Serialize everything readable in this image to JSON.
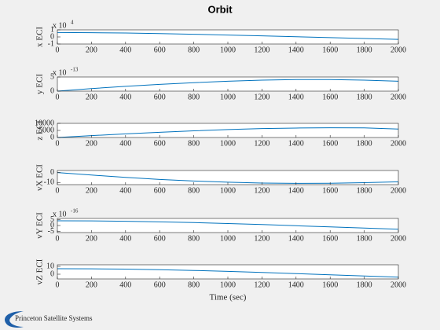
{
  "title": "Orbit",
  "footer": {
    "logo_text": "Princeton Satellite Systems"
  },
  "chart_data": [
    {
      "type": "line",
      "ylabel": "x ECI",
      "y_multiplier": {
        "base": "x 10",
        "power": "4"
      },
      "x": [
        0,
        200,
        400,
        600,
        800,
        1000,
        1200,
        1400,
        1600,
        1800,
        2000
      ],
      "series": [
        {
          "color": "#0072bd",
          "values": [
            0.62,
            0.6,
            0.55,
            0.47,
            0.38,
            0.27,
            0.15,
            0.03,
            -0.1,
            -0.22,
            -0.35
          ]
        }
      ],
      "xlim": [
        0,
        2000
      ],
      "xticks": [
        0,
        200,
        400,
        600,
        800,
        1000,
        1200,
        1400,
        1600,
        1800,
        2000
      ],
      "ylim": [
        -1,
        1
      ],
      "yticks": [
        -1,
        0,
        1
      ]
    },
    {
      "type": "line",
      "ylabel": "y ECI",
      "y_multiplier": {
        "base": "x 10",
        "power": "-13"
      },
      "x": [
        0,
        200,
        400,
        600,
        800,
        1000,
        1200,
        1400,
        1600,
        1800,
        2000
      ],
      "series": [
        {
          "color": "#0072bd",
          "values": [
            0,
            0.9,
            1.7,
            2.4,
            3.0,
            3.5,
            3.9,
            4.1,
            4.1,
            3.9,
            3.5
          ]
        }
      ],
      "xlim": [
        0,
        2000
      ],
      "xticks": [
        0,
        200,
        400,
        600,
        800,
        1000,
        1200,
        1400,
        1600,
        1800,
        2000
      ],
      "ylim": [
        0,
        5
      ],
      "yticks": [
        0,
        5
      ]
    },
    {
      "type": "line",
      "ylabel": "z ECI",
      "x": [
        0,
        200,
        400,
        600,
        800,
        1000,
        1200,
        1400,
        1600,
        1800,
        2000
      ],
      "series": [
        {
          "color": "#0072bd",
          "values": [
            0,
            1300,
            2600,
            3700,
            4700,
            5600,
            6300,
            6700,
            6900,
            6800,
            6000
          ]
        }
      ],
      "xlim": [
        0,
        2000
      ],
      "xticks": [
        0,
        200,
        400,
        600,
        800,
        1000,
        1200,
        1400,
        1600,
        1800,
        2000
      ],
      "ylim": [
        0,
        10000
      ],
      "yticks": [
        0,
        5000,
        10000
      ]
    },
    {
      "type": "line",
      "ylabel": "vX ECI",
      "x": [
        0,
        200,
        400,
        600,
        800,
        1000,
        1200,
        1400,
        1600,
        1800,
        2000
      ],
      "series": [
        {
          "color": "#0072bd",
          "values": [
            0,
            -2.5,
            -4.8,
            -6.8,
            -8.4,
            -9.6,
            -10.4,
            -10.7,
            -10.6,
            -10.1,
            -9.2
          ]
        }
      ],
      "xlim": [
        0,
        2000
      ],
      "xticks": [
        0,
        200,
        400,
        600,
        800,
        1000,
        1200,
        1400,
        1600,
        1800,
        2000
      ],
      "ylim": [
        -12,
        2
      ],
      "yticks": [
        -10,
        0
      ]
    },
    {
      "type": "line",
      "ylabel": "vY ECI",
      "y_multiplier": {
        "base": "x 10",
        "power": "-16"
      },
      "x": [
        0,
        200,
        400,
        600,
        800,
        1000,
        1200,
        1400,
        1600,
        1800,
        2000
      ],
      "series": [
        {
          "color": "#0072bd",
          "values": [
            4,
            3.9,
            3.6,
            3.1,
            2.5,
            1.7,
            0.8,
            -0.2,
            -1.2,
            -2.2,
            -3.2
          ]
        }
      ],
      "xlim": [
        0,
        2000
      ],
      "xticks": [
        0,
        200,
        400,
        600,
        800,
        1000,
        1200,
        1400,
        1600,
        1800,
        2000
      ],
      "ylim": [
        -6,
        6
      ],
      "yticks": [
        -5,
        0,
        5
      ]
    },
    {
      "type": "line",
      "ylabel": "vZ ECI",
      "xlabel": "Time (sec)",
      "x": [
        0,
        200,
        400,
        600,
        800,
        1000,
        1200,
        1400,
        1600,
        1800,
        2000
      ],
      "series": [
        {
          "color": "#0072bd",
          "values": [
            7,
            6.9,
            6.5,
            5.8,
            4.8,
            3.6,
            2.2,
            0.8,
            -0.8,
            -2.3,
            -3.8
          ]
        }
      ],
      "xlim": [
        0,
        2000
      ],
      "xticks": [
        0,
        200,
        400,
        600,
        800,
        1000,
        1200,
        1400,
        1600,
        1800,
        2000
      ],
      "ylim": [
        -6,
        12
      ],
      "yticks": [
        0,
        10
      ]
    }
  ]
}
